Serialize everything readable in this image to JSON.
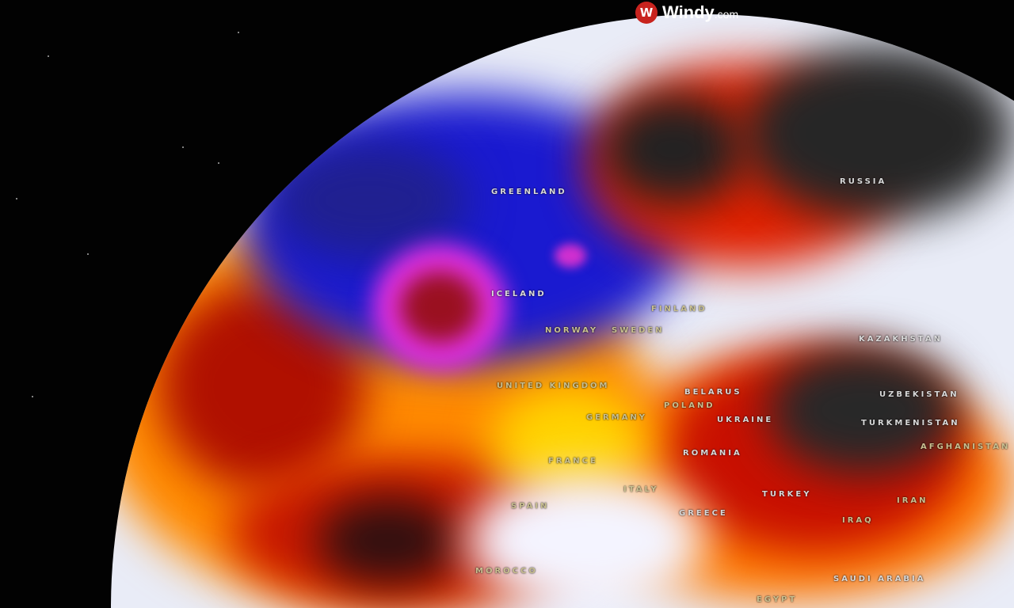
{
  "brand": {
    "name": "Windy",
    "suffix": ".com",
    "icon": "windy-logo-icon"
  },
  "map": {
    "layer_colors": {
      "cold_extreme": "#e040e0",
      "cold": "#1a1ad0",
      "neutral": "#eef0fa",
      "warm": "#ffd400",
      "hot": "#e02000",
      "extreme": "#303030"
    },
    "labels": [
      "GREENLAND",
      "ICELAND",
      "RUSSIA",
      "FINLAND",
      "NORWAY",
      "SWEDEN",
      "UNITED KINGDOM",
      "GERMANY",
      "POLAND",
      "BELARUS",
      "UKRAINE",
      "KAZAKHSTAN",
      "UZBEKISTAN",
      "TURKMENISTAN",
      "AFGHANISTAN",
      "ROMANIA",
      "FRANCE",
      "SPAIN",
      "ITALY",
      "GREECE",
      "TURKEY",
      "IRAN",
      "IRAQ",
      "MOROCCO",
      "SAUDI ARABIA",
      "EGYPT"
    ]
  }
}
